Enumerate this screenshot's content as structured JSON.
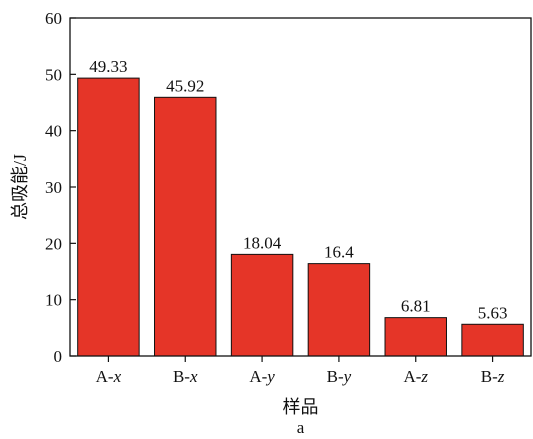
{
  "chart_data": {
    "type": "bar",
    "categories": [
      {
        "prefix": "A-",
        "var": "x"
      },
      {
        "prefix": "B-",
        "var": "x"
      },
      {
        "prefix": "A-",
        "var": "y"
      },
      {
        "prefix": "B-",
        "var": "y"
      },
      {
        "prefix": "A-",
        "var": "z"
      },
      {
        "prefix": "B-",
        "var": "z"
      }
    ],
    "values": [
      49.33,
      45.92,
      18.04,
      16.4,
      6.81,
      5.63
    ],
    "value_labels": [
      "49.33",
      "45.92",
      "18.04",
      "16.4",
      "6.81",
      "5.63"
    ],
    "xlabel": "样品",
    "ylabel": "总吸能/J",
    "caption": "a",
    "ylim": [
      0,
      60
    ],
    "yticks": [
      "0",
      "10",
      "20",
      "30",
      "40",
      "50",
      "60"
    ],
    "bar_color": "#e53528",
    "grid": false,
    "legend": false
  }
}
